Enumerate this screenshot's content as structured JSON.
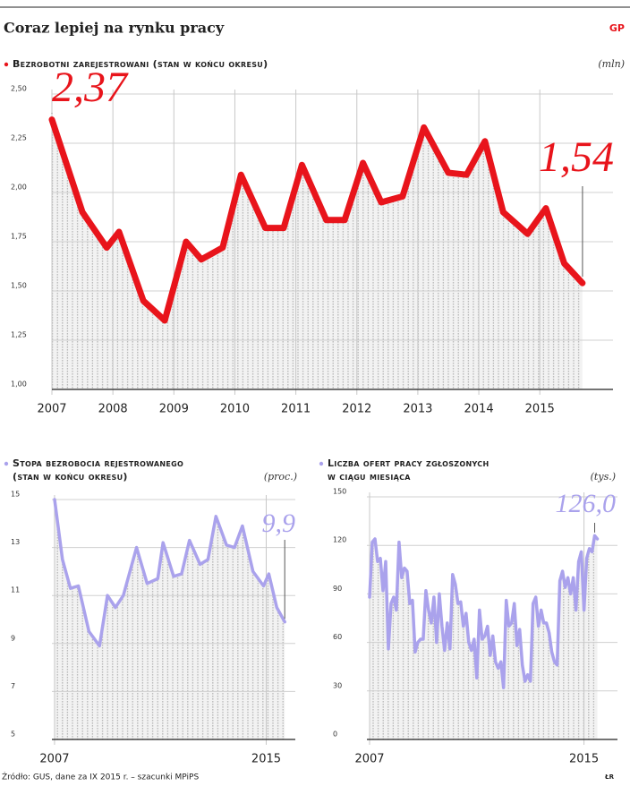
{
  "page_title": "Coraz lepiej na rynku pracy",
  "logo": "GP",
  "source": "Źródło: GUS, dane za IX 2015 r. – szacunki MPiPS",
  "author": "ŁR",
  "chart_data": [
    {
      "type": "line",
      "title": [
        "Bezrobotni zarejestrowani (stan w końcu okresu)"
      ],
      "unit": "(mln)",
      "color": "#e8141b",
      "x": [
        2007.0,
        2007.5,
        2007.9,
        2008.1,
        2008.5,
        2008.85,
        2009.2,
        2009.45,
        2009.8,
        2010.1,
        2010.5,
        2010.8,
        2011.1,
        2011.5,
        2011.8,
        2012.1,
        2012.4,
        2012.75,
        2013.1,
        2013.5,
        2013.8,
        2014.1,
        2014.4,
        2014.8,
        2015.1,
        2015.4,
        2015.7
      ],
      "values": [
        2.37,
        1.9,
        1.72,
        1.8,
        1.45,
        1.35,
        1.75,
        1.66,
        1.72,
        2.09,
        1.82,
        1.82,
        2.14,
        1.86,
        1.86,
        2.15,
        1.95,
        1.98,
        2.33,
        2.1,
        2.09,
        2.26,
        1.9,
        1.79,
        1.92,
        1.64,
        1.54
      ],
      "annotations": [
        {
          "text": "2,37",
          "point": 0
        },
        {
          "text": "1,54",
          "point": 26
        }
      ],
      "xlim": [
        2007,
        2016.2
      ],
      "xticks": [
        2007,
        2008,
        2009,
        2010,
        2011,
        2012,
        2013,
        2014,
        2015
      ],
      "ylim": [
        1.0,
        2.5
      ],
      "yticks": [
        {
          "value": 1.0,
          "label": "1,00"
        },
        {
          "value": 1.25,
          "label": "1,25"
        },
        {
          "value": 1.5,
          "label": "1,50"
        },
        {
          "value": 1.75,
          "label": "1,75"
        },
        {
          "value": 2.0,
          "label": "2,00"
        },
        {
          "value": 2.25,
          "label": "2,25"
        },
        {
          "value": 2.5,
          "label": "2,50"
        }
      ]
    },
    {
      "type": "line",
      "title": [
        "Stopa bezrobocia rejestrowanego",
        "(stan w końcu okresu)"
      ],
      "unit": "(proc.)",
      "color": "#aaa2ec",
      "x": [
        2007.0,
        2007.3,
        2007.6,
        2007.9,
        2008.3,
        2008.7,
        2009.0,
        2009.3,
        2009.6,
        2010.1,
        2010.5,
        2010.9,
        2011.1,
        2011.5,
        2011.8,
        2012.1,
        2012.5,
        2012.8,
        2013.1,
        2013.5,
        2013.8,
        2014.1,
        2014.5,
        2014.9,
        2015.1,
        2015.4,
        2015.7
      ],
      "values": [
        15.0,
        12.5,
        11.3,
        11.4,
        9.5,
        8.9,
        11.0,
        10.5,
        11.0,
        13.0,
        11.5,
        11.7,
        13.2,
        11.8,
        11.9,
        13.3,
        12.3,
        12.5,
        14.3,
        13.1,
        13.0,
        13.9,
        12.0,
        11.4,
        11.9,
        10.5,
        9.9
      ],
      "annotations": [
        {
          "text": "9,9",
          "point": 26
        }
      ],
      "xlim": [
        2006.9,
        2016.1
      ],
      "xticks": [
        2007,
        2015
      ],
      "ylim": [
        5,
        15
      ],
      "yticks": [
        5,
        7,
        9,
        11,
        13,
        15
      ]
    },
    {
      "type": "line",
      "title": [
        "Liczba ofert pracy zgłoszonych",
        "w ciągu miesiąca"
      ],
      "unit": "(tys.)",
      "color": "#aaa2ec",
      "x": [
        2007.0,
        2007.1,
        2007.2,
        2007.3,
        2007.4,
        2007.5,
        2007.6,
        2007.7,
        2007.8,
        2007.9,
        2008.0,
        2008.1,
        2008.2,
        2008.3,
        2008.4,
        2008.5,
        2008.6,
        2008.7,
        2008.8,
        2008.9,
        2009.0,
        2009.1,
        2009.2,
        2009.3,
        2009.4,
        2009.5,
        2009.6,
        2009.7,
        2009.8,
        2009.9,
        2010.0,
        2010.1,
        2010.2,
        2010.3,
        2010.4,
        2010.5,
        2010.6,
        2010.7,
        2010.8,
        2010.9,
        2011.0,
        2011.1,
        2011.2,
        2011.3,
        2011.4,
        2011.5,
        2011.6,
        2011.7,
        2011.8,
        2011.9,
        2012.0,
        2012.1,
        2012.2,
        2012.3,
        2012.4,
        2012.5,
        2012.6,
        2012.7,
        2012.8,
        2012.9,
        2013.0,
        2013.1,
        2013.2,
        2013.3,
        2013.4,
        2013.5,
        2013.6,
        2013.7,
        2013.8,
        2013.9,
        2014.0,
        2014.1,
        2014.2,
        2014.3,
        2014.4,
        2014.5,
        2014.6,
        2014.7,
        2014.8,
        2014.9,
        2015.0,
        2015.1,
        2015.2,
        2015.3,
        2015.4,
        2015.5
      ],
      "values": [
        88,
        122,
        124,
        110,
        112,
        92,
        110,
        56,
        84,
        88,
        80,
        122,
        100,
        106,
        104,
        84,
        86,
        54,
        60,
        62,
        62,
        92,
        80,
        72,
        88,
        60,
        90,
        70,
        55,
        72,
        56,
        102,
        96,
        84,
        85,
        70,
        78,
        60,
        55,
        62,
        38,
        80,
        62,
        64,
        70,
        52,
        64,
        48,
        44,
        48,
        32,
        86,
        70,
        72,
        84,
        58,
        68,
        46,
        36,
        40,
        36,
        84,
        88,
        70,
        80,
        72,
        72,
        66,
        54,
        48,
        46,
        98,
        104,
        94,
        100,
        90,
        100,
        80,
        110,
        116,
        80,
        112,
        118,
        116,
        126,
        124
      ],
      "annotations": [
        {
          "text": "126,0",
          "point": 84
        }
      ],
      "xlim": [
        2006.9,
        2016.25
      ],
      "xticks": [
        2007,
        2015
      ],
      "ylim": [
        0,
        150
      ],
      "yticks": [
        0,
        30,
        60,
        90,
        120,
        150
      ]
    }
  ]
}
